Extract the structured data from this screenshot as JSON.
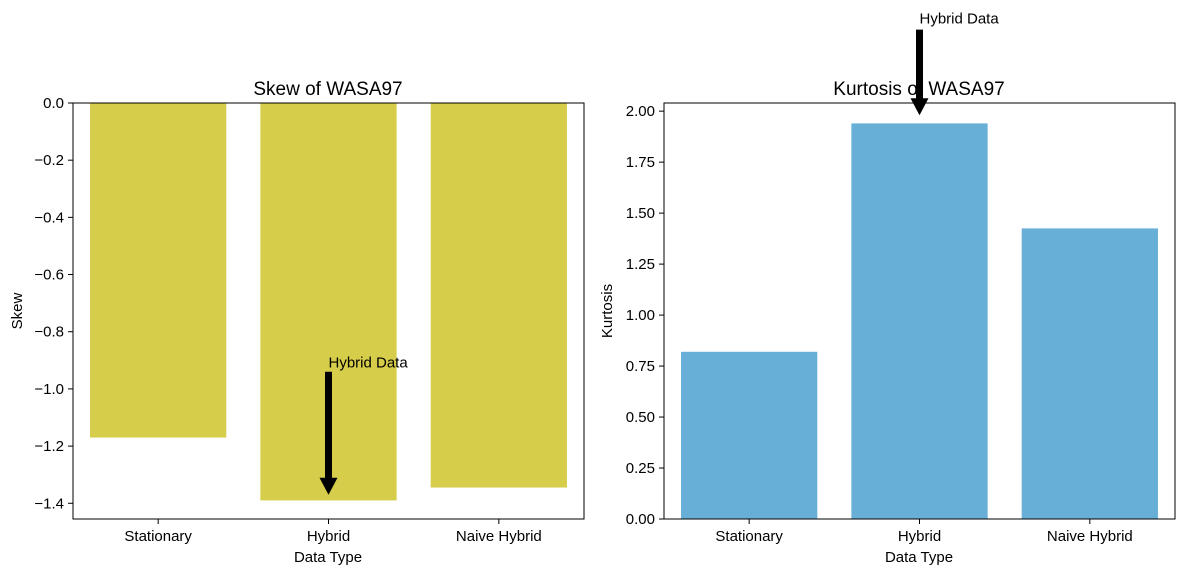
{
  "chart_data": [
    {
      "type": "bar",
      "title": "Skew of WASA97",
      "xlabel": "Data Type",
      "ylabel": "Skew",
      "categories": [
        "Stationary",
        "Hybrid",
        "Naive Hybrid"
      ],
      "values": [
        -1.17,
        -1.39,
        -1.345
      ],
      "ylim": [
        -1.455,
        0.0
      ],
      "yticks": [
        0.0,
        -0.2,
        -0.4,
        -0.6,
        -0.8,
        -1.0,
        -1.2,
        -1.4
      ],
      "ytick_labels": [
        "0.0",
        "−0.2",
        "−0.4",
        "−0.6",
        "−0.8",
        "−1.0",
        "−1.2",
        "−1.4"
      ],
      "bar_color": "#d6cd4a",
      "grid": false,
      "annotation": {
        "text": "Hybrid Data",
        "category": "Hybrid",
        "text_y": -0.925,
        "arrow_tail_y": -0.94,
        "arrow_head_y": -1.37
      }
    },
    {
      "type": "bar",
      "title": "Kurtosis of WASA97",
      "xlabel": "Data Type",
      "ylabel": "Kurtosis",
      "categories": [
        "Stationary",
        "Hybrid",
        "Naive Hybrid"
      ],
      "values": [
        0.82,
        1.94,
        1.425
      ],
      "ylim": [
        0.0,
        2.04
      ],
      "yticks": [
        0.0,
        0.25,
        0.5,
        0.75,
        1.0,
        1.25,
        1.5,
        1.75,
        2.0
      ],
      "ytick_labels": [
        "0.00",
        "0.25",
        "0.50",
        "0.75",
        "1.00",
        "1.25",
        "1.50",
        "1.75",
        "2.00"
      ],
      "bar_color": "#67afd7",
      "grid": false,
      "annotation": {
        "text": "Hybrid Data",
        "category": "Hybrid",
        "text_y": 2.43,
        "arrow_tail_y": 2.4,
        "arrow_head_y": 1.98
      }
    }
  ]
}
